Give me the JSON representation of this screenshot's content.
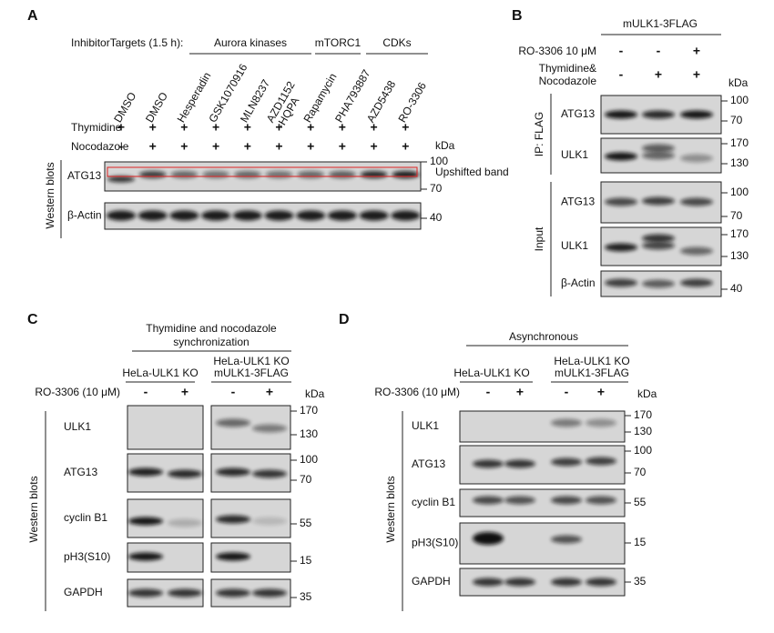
{
  "panel_a": {
    "label": "A",
    "targets_label": "InhibitorTargets (1.5 h):",
    "target_groups": [
      "Aurora  kinases",
      "mTORC1",
      "CDKs"
    ],
    "lanes": [
      [
        "DMSO"
      ],
      [
        "DMSO"
      ],
      [
        "Hesperadin"
      ],
      [
        "GSK1070916"
      ],
      [
        "MLN8237"
      ],
      [
        "AZD1152",
        "-HQPA"
      ],
      [
        "Rapamycin"
      ],
      [
        "PHA793887"
      ],
      [
        "AZD5438"
      ],
      [
        "RO-3306"
      ]
    ],
    "treatments": [
      {
        "name": "Thymidine",
        "signs": [
          "+",
          "+",
          "+",
          "+",
          "+",
          "+",
          "+",
          "+",
          "+",
          "+"
        ]
      },
      {
        "name": "Nocodazole",
        "signs": [
          "-",
          "+",
          "+",
          "+",
          "+",
          "+",
          "+",
          "+",
          "+",
          "+"
        ]
      }
    ],
    "kda_unit": "kDa",
    "side_label": "Western blots",
    "blots": [
      {
        "name": "ATG13",
        "markers": [
          "100",
          "70"
        ]
      },
      {
        "name": "β-Actin",
        "markers": [
          "40"
        ]
      }
    ],
    "annotation": "Upshifted band"
  },
  "panel_b": {
    "label": "B",
    "header": "mULK1-3FLAG",
    "treatments": [
      {
        "name": [
          "RO-3306 10 μM"
        ],
        "signs": [
          "-",
          "-",
          "+"
        ]
      },
      {
        "name": [
          "Thymidine&",
          "Nocodazole"
        ],
        "signs": [
          "-",
          "+",
          "+"
        ]
      }
    ],
    "kda_unit": "kDa",
    "sections": [
      {
        "name": "IP: FLAG",
        "blots": [
          {
            "name": "ATG13",
            "markers": [
              "100",
              "70"
            ]
          },
          {
            "name": "ULK1",
            "markers": [
              "170",
              "130"
            ]
          }
        ]
      },
      {
        "name": "Input",
        "blots": [
          {
            "name": "ATG13",
            "markers": [
              "100",
              "70"
            ]
          },
          {
            "name": "ULK1",
            "markers": [
              "170",
              "130"
            ]
          },
          {
            "name": "β-Actin",
            "markers": [
              "40"
            ]
          }
        ]
      }
    ]
  },
  "panel_c": {
    "label": "C",
    "header": [
      "Thymidine and nocodazole",
      "synchronization"
    ],
    "groups": [
      [
        "HeLa-ULK1 KO"
      ],
      [
        "HeLa-ULK1 KO",
        "mULK1-3FLAG"
      ]
    ],
    "treatment": {
      "name": "RO-3306 (10 μM)",
      "signs": [
        "-",
        "+",
        "-",
        "+"
      ]
    },
    "kda_unit": "kDa",
    "side_label": "Western blots",
    "blots": [
      {
        "name": "ULK1",
        "markers": [
          "170",
          "130"
        ]
      },
      {
        "name": "ATG13",
        "markers": [
          "100",
          "70"
        ]
      },
      {
        "name": "cyclin B1",
        "markers": [
          "55"
        ]
      },
      {
        "name": "pH3(S10)",
        "markers": [
          "15"
        ]
      },
      {
        "name": "GAPDH",
        "markers": [
          "35"
        ]
      }
    ]
  },
  "panel_d": {
    "label": "D",
    "header": [
      "Asynchronous"
    ],
    "groups": [
      [
        "HeLa-ULK1 KO"
      ],
      [
        "HeLa-ULK1 KO",
        "mULK1-3FLAG"
      ]
    ],
    "treatment": {
      "name": "RO-3306 (10 μM)",
      "signs": [
        "-",
        "+",
        "-",
        "+"
      ]
    },
    "kda_unit": "kDa",
    "side_label": "Western blots",
    "blots": [
      {
        "name": "ULK1",
        "markers": [
          "170",
          "130"
        ]
      },
      {
        "name": "ATG13",
        "markers": [
          "100",
          "70"
        ]
      },
      {
        "name": "cyclin B1",
        "markers": [
          "55"
        ]
      },
      {
        "name": "pH3(S10)",
        "markers": [
          "15"
        ]
      },
      {
        "name": "GAPDH",
        "markers": [
          "35"
        ]
      }
    ]
  }
}
